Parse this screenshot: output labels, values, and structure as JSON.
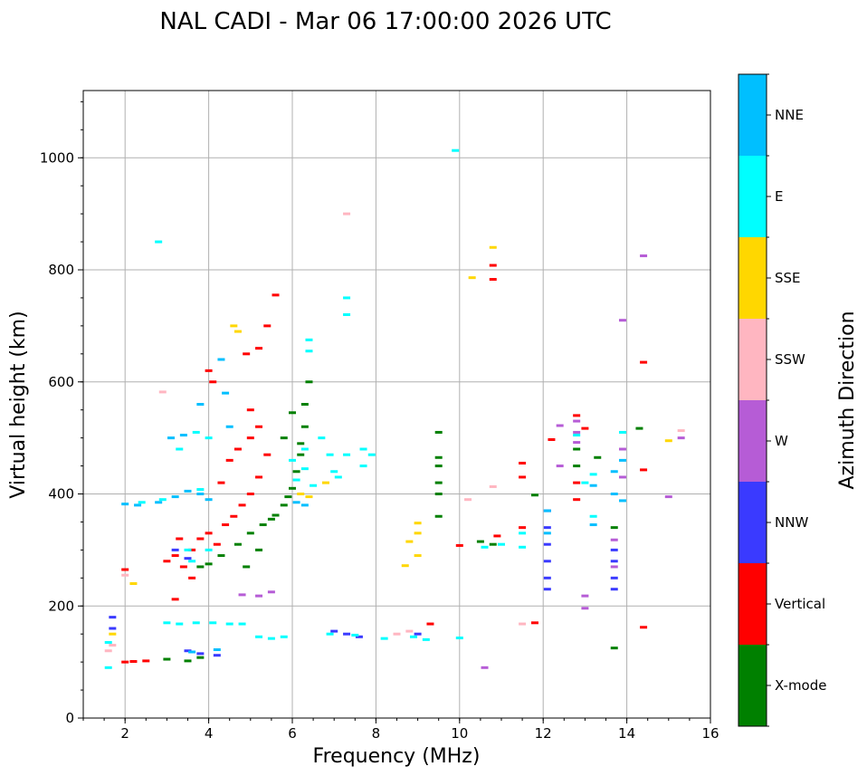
{
  "chart_data": {
    "type": "scatter",
    "title": "NAL CADI - Mar 06 17:00:00 2026 UTC",
    "xlabel": "Frequency (MHz)",
    "ylabel": "Virtual height (km)",
    "xlim": [
      1,
      16
    ],
    "ylim": [
      0,
      1120
    ],
    "xticks": [
      "2",
      "4",
      "6",
      "8",
      "10",
      "12",
      "14",
      "16"
    ],
    "yticks": [
      "0",
      "200",
      "400",
      "600",
      "800",
      "1000"
    ],
    "grid": true,
    "colorbar": {
      "title": "Azimuth Direction",
      "categories": [
        {
          "label": "X-mode",
          "color": "#008000"
        },
        {
          "label": "Vertical",
          "color": "#ff0000"
        },
        {
          "label": "NNW",
          "color": "#3a3aff"
        },
        {
          "label": "W",
          "color": "#b65cd6"
        },
        {
          "label": "SSW",
          "color": "#ffb6c1"
        },
        {
          "label": "SSE",
          "color": "#ffd700"
        },
        {
          "label": "E",
          "color": "#00ffff"
        },
        {
          "label": "NNE",
          "color": "#00bfff"
        }
      ]
    },
    "series": [
      {
        "name": "X-mode",
        "points": [
          [
            5.5,
            355
          ],
          [
            5.6,
            362
          ],
          [
            5.3,
            345
          ],
          [
            5.0,
            330
          ],
          [
            4.7,
            310
          ],
          [
            4.3,
            290
          ],
          [
            4.0,
            275
          ],
          [
            3.8,
            270
          ],
          [
            5.8,
            380
          ],
          [
            5.9,
            395
          ],
          [
            6.0,
            410
          ],
          [
            6.1,
            440
          ],
          [
            6.2,
            470
          ],
          [
            6.3,
            560
          ],
          [
            6.4,
            600
          ],
          [
            6.0,
            545
          ],
          [
            6.3,
            520
          ],
          [
            9.5,
            510
          ],
          [
            9.5,
            465
          ],
          [
            9.5,
            450
          ],
          [
            9.5,
            420
          ],
          [
            9.5,
            400
          ],
          [
            9.5,
            360
          ],
          [
            10.5,
            315
          ],
          [
            10.8,
            310
          ],
          [
            11.8,
            398
          ],
          [
            13.7,
            340
          ],
          [
            13.7,
            125
          ],
          [
            14.3,
            517
          ],
          [
            12.8,
            480
          ],
          [
            12.8,
            450
          ],
          [
            13.3,
            465
          ],
          [
            3.0,
            105
          ],
          [
            3.5,
            102
          ],
          [
            3.8,
            108
          ],
          [
            5.2,
            300
          ],
          [
            4.9,
            270
          ],
          [
            5.8,
            500
          ],
          [
            6.2,
            490
          ]
        ]
      },
      {
        "name": "Vertical",
        "points": [
          [
            3.0,
            280
          ],
          [
            3.2,
            290
          ],
          [
            3.4,
            270
          ],
          [
            3.6,
            300
          ],
          [
            3.8,
            320
          ],
          [
            4.0,
            330
          ],
          [
            4.2,
            310
          ],
          [
            4.4,
            345
          ],
          [
            4.6,
            360
          ],
          [
            4.8,
            380
          ],
          [
            5.0,
            400
          ],
          [
            5.2,
            430
          ],
          [
            5.4,
            470
          ],
          [
            5.0,
            500
          ],
          [
            4.7,
            480
          ],
          [
            4.5,
            460
          ],
          [
            4.3,
            420
          ],
          [
            4.0,
            620
          ],
          [
            4.1,
            600
          ],
          [
            5.2,
            660
          ],
          [
            5.4,
            700
          ],
          [
            5.6,
            755
          ],
          [
            5.0,
            550
          ],
          [
            5.2,
            520
          ],
          [
            4.9,
            650
          ],
          [
            2.0,
            100
          ],
          [
            2.2,
            101
          ],
          [
            2.5,
            102
          ],
          [
            3.2,
            212
          ],
          [
            2.0,
            265
          ],
          [
            10.8,
            808
          ],
          [
            10.8,
            783
          ],
          [
            11.5,
            455
          ],
          [
            11.5,
            430
          ],
          [
            11.5,
            340
          ],
          [
            11.8,
            170
          ],
          [
            12.2,
            497
          ],
          [
            12.8,
            540
          ],
          [
            12.8,
            420
          ],
          [
            12.8,
            390
          ],
          [
            13.0,
            517
          ],
          [
            14.4,
            635
          ],
          [
            14.4,
            443
          ],
          [
            14.4,
            162
          ],
          [
            9.3,
            168
          ],
          [
            10.0,
            308
          ],
          [
            10.9,
            325
          ],
          [
            3.6,
            250
          ],
          [
            3.3,
            320
          ]
        ]
      },
      {
        "name": "NNW",
        "points": [
          [
            12.1,
            370
          ],
          [
            12.1,
            340
          ],
          [
            12.1,
            310
          ],
          [
            12.1,
            280
          ],
          [
            12.1,
            250
          ],
          [
            12.1,
            230
          ],
          [
            13.7,
            300
          ],
          [
            13.7,
            280
          ],
          [
            13.7,
            250
          ],
          [
            13.7,
            230
          ],
          [
            7.0,
            155
          ],
          [
            7.3,
            150
          ],
          [
            7.6,
            145
          ],
          [
            9.0,
            150
          ],
          [
            3.5,
            120
          ],
          [
            3.8,
            115
          ],
          [
            4.2,
            112
          ],
          [
            1.7,
            180
          ],
          [
            1.7,
            160
          ],
          [
            3.2,
            300
          ],
          [
            3.5,
            285
          ]
        ]
      },
      {
        "name": "W",
        "points": [
          [
            12.4,
            522
          ],
          [
            12.4,
            450
          ],
          [
            12.8,
            530
          ],
          [
            12.8,
            510
          ],
          [
            12.8,
            492
          ],
          [
            13.0,
            218
          ],
          [
            13.0,
            196
          ],
          [
            13.7,
            318
          ],
          [
            13.7,
            270
          ],
          [
            13.9,
            710
          ],
          [
            13.9,
            480
          ],
          [
            13.9,
            430
          ],
          [
            14.4,
            825
          ],
          [
            15.0,
            395
          ],
          [
            15.3,
            500
          ],
          [
            10.6,
            90
          ],
          [
            4.8,
            220
          ],
          [
            5.2,
            218
          ],
          [
            5.5,
            225
          ]
        ]
      },
      {
        "name": "SSW",
        "points": [
          [
            7.3,
            900
          ],
          [
            10.8,
            413
          ],
          [
            10.2,
            390
          ],
          [
            8.5,
            150
          ],
          [
            8.8,
            155
          ],
          [
            11.5,
            168
          ],
          [
            15.3,
            513
          ],
          [
            2.9,
            582
          ],
          [
            1.6,
            120
          ],
          [
            1.7,
            130
          ],
          [
            2.0,
            255
          ]
        ]
      },
      {
        "name": "SSE",
        "points": [
          [
            10.3,
            786
          ],
          [
            10.8,
            840
          ],
          [
            15.0,
            495
          ],
          [
            9.0,
            348
          ],
          [
            9.0,
            330
          ],
          [
            8.8,
            315
          ],
          [
            8.7,
            272
          ],
          [
            6.4,
            395
          ],
          [
            6.2,
            400
          ],
          [
            6.8,
            420
          ],
          [
            4.7,
            690
          ],
          [
            4.6,
            700
          ],
          [
            1.7,
            150
          ],
          [
            2.2,
            240
          ],
          [
            9.0,
            290
          ]
        ]
      },
      {
        "name": "E",
        "points": [
          [
            9.9,
            1013
          ],
          [
            7.3,
            750
          ],
          [
            7.3,
            720
          ],
          [
            6.4,
            675
          ],
          [
            6.4,
            655
          ],
          [
            6.7,
            500
          ],
          [
            6.9,
            470
          ],
          [
            7.0,
            440
          ],
          [
            7.1,
            430
          ],
          [
            7.3,
            470
          ],
          [
            7.7,
            480
          ],
          [
            7.7,
            450
          ],
          [
            7.9,
            470
          ],
          [
            6.5,
            415
          ],
          [
            6.3,
            480
          ],
          [
            6.3,
            445
          ],
          [
            6.0,
            460
          ],
          [
            6.1,
            425
          ],
          [
            4.0,
            500
          ],
          [
            3.7,
            510
          ],
          [
            3.3,
            480
          ],
          [
            3.0,
            170
          ],
          [
            3.3,
            168
          ],
          [
            3.7,
            170
          ],
          [
            4.1,
            170
          ],
          [
            4.5,
            168
          ],
          [
            4.8,
            168
          ],
          [
            5.2,
            145
          ],
          [
            5.5,
            142
          ],
          [
            5.8,
            145
          ],
          [
            6.9,
            150
          ],
          [
            7.5,
            148
          ],
          [
            8.2,
            142
          ],
          [
            8.9,
            145
          ],
          [
            9.2,
            140
          ],
          [
            10.0,
            143
          ],
          [
            11.5,
            330
          ],
          [
            11.5,
            305
          ],
          [
            12.8,
            505
          ],
          [
            13.0,
            420
          ],
          [
            13.2,
            435
          ],
          [
            13.2,
            360
          ],
          [
            13.9,
            510
          ],
          [
            2.4,
            385
          ],
          [
            2.9,
            390
          ],
          [
            3.8,
            408
          ],
          [
            1.6,
            135
          ],
          [
            1.6,
            90
          ],
          [
            2.8,
            850
          ],
          [
            3.5,
            300
          ],
          [
            3.6,
            280
          ],
          [
            4.0,
            300
          ],
          [
            10.6,
            305
          ],
          [
            11.0,
            310
          ]
        ]
      },
      {
        "name": "NNE",
        "points": [
          [
            2.0,
            382
          ],
          [
            2.3,
            380
          ],
          [
            2.8,
            385
          ],
          [
            3.2,
            395
          ],
          [
            3.5,
            405
          ],
          [
            3.8,
            400
          ],
          [
            4.0,
            390
          ],
          [
            6.1,
            385
          ],
          [
            6.3,
            380
          ],
          [
            13.9,
            388
          ],
          [
            13.9,
            460
          ],
          [
            13.2,
            345
          ],
          [
            13.2,
            415
          ],
          [
            12.1,
            330
          ],
          [
            12.1,
            370
          ],
          [
            13.7,
            440
          ],
          [
            13.7,
            400
          ],
          [
            3.6,
            118
          ],
          [
            4.2,
            122
          ],
          [
            4.5,
            520
          ],
          [
            3.4,
            505
          ],
          [
            3.1,
            500
          ],
          [
            4.3,
            640
          ],
          [
            3.8,
            560
          ],
          [
            4.4,
            580
          ]
        ]
      }
    ]
  }
}
